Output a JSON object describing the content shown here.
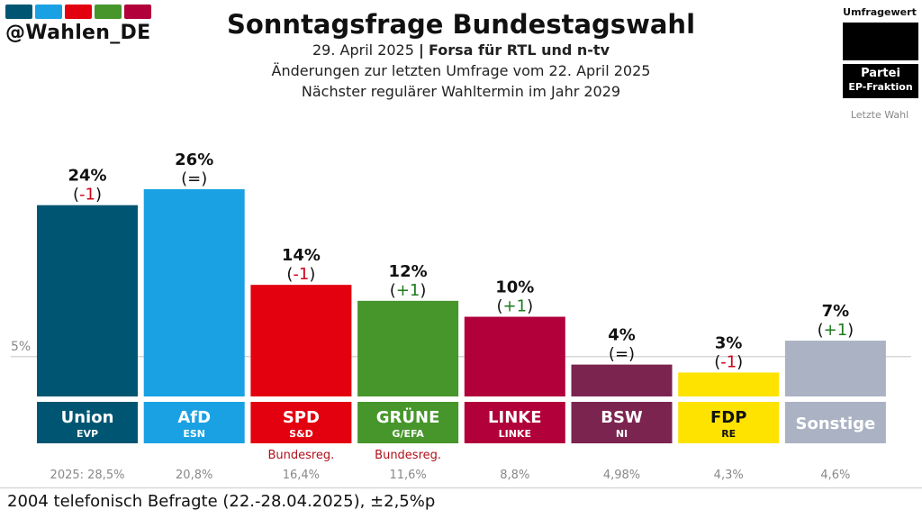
{
  "brand": {
    "handle": "@Wahlen_DE",
    "stripes": [
      "#005672",
      "#1AA1E3",
      "#E3000F",
      "#46962B",
      "#B1003A"
    ]
  },
  "header": {
    "title": "Sonntagsfrage Bundestagswahl",
    "date": "29. April 2025",
    "pipe": "|",
    "institute": "Forsa für RTL und n-tv",
    "changes_note": "Änderungen zur letzten Umfrage vom 22. April 2025",
    "next_election": "Nächster regulärer Wahltermin im Jahr 2029"
  },
  "legend": {
    "value_label": "Umfragewert",
    "party_label": "Partei",
    "group_label": "EP-Fraktion",
    "last_label": "Letzte Wahl"
  },
  "chart_data": {
    "type": "bar",
    "categories": [
      "Union",
      "AfD",
      "SPD",
      "GRÜNE",
      "LINKE",
      "BSW",
      "FDP",
      "Sonstige"
    ],
    "values": [
      24,
      26,
      14,
      12,
      10,
      4,
      3,
      7
    ],
    "value_labels": [
      "24%",
      "26%",
      "14%",
      "12%",
      "10%",
      "4%",
      "3%",
      "7%"
    ],
    "changes": [
      "(-1)",
      "(=)",
      "(-1)",
      "(+1)",
      "(+1)",
      "(=)",
      "(-1)",
      "(+1)"
    ],
    "groups": [
      "EVP",
      "ESN",
      "S&D",
      "G/EFA",
      "LINKE",
      "NI",
      "RE",
      ""
    ],
    "government": [
      "",
      "",
      "Bundesreg.",
      "Bundesreg.",
      "",
      "",
      "",
      ""
    ],
    "last_election": [
      "2025: 28,5%",
      "20,8%",
      "16,4%",
      "11,6%",
      "8,8%",
      "4,98%",
      "4,3%",
      "4,6%"
    ],
    "colors": [
      "#005672",
      "#1AA1E3",
      "#E3000F",
      "#46962B",
      "#B1003A",
      "#7B2450",
      "#FFE300",
      "#AAB2C3"
    ],
    "label_colors": [
      "#ffffff",
      "#ffffff",
      "#ffffff",
      "#ffffff",
      "#ffffff",
      "#ffffff",
      "#111111",
      "#ffffff"
    ],
    "change_colors": {
      "up": "#1E7B1E",
      "down": "#D0021B",
      "same": "#111111"
    },
    "threshold": 5,
    "threshold_label": "5%",
    "ylim": [
      0,
      26
    ]
  },
  "footer": {
    "note": "2004 telefonisch Befragte (22.-28.04.2025), ±2,5%p"
  }
}
